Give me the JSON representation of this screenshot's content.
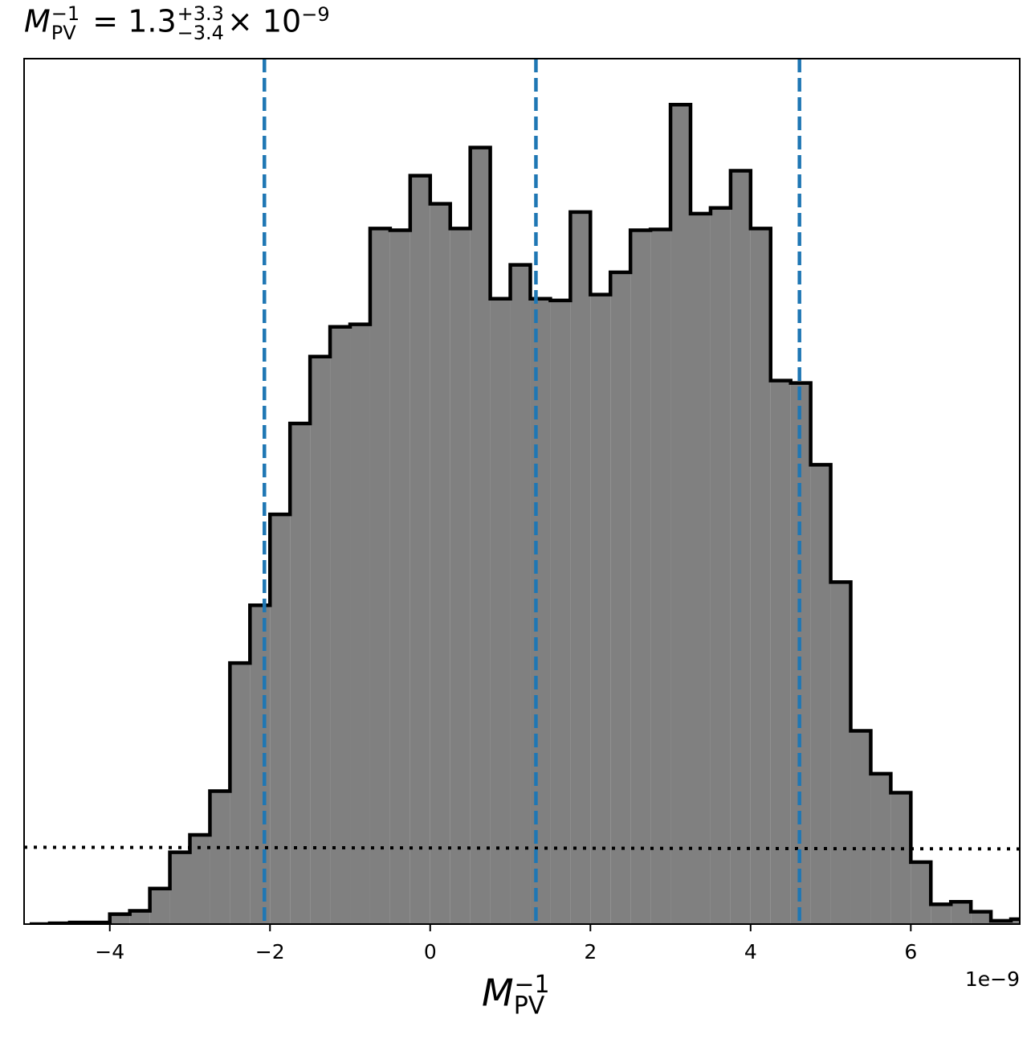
{
  "title": {
    "symbol": "M",
    "symbol_sub": "PV",
    "symbol_sup": "−1",
    "equals": "=",
    "median": "1.3",
    "plus": "+3.3",
    "minus": "−3.4",
    "times": "×",
    "scale_base": "10",
    "scale_exp": "−9"
  },
  "chart_data": {
    "type": "histogram",
    "xlabel": {
      "symbol": "M",
      "sub": "PV",
      "sup": "−1"
    },
    "x_offset_label": "1e−9",
    "x_scale": 1e-09,
    "xlim": [
      -5.07,
      7.36
    ],
    "ylim": [
      0,
      1.0
    ],
    "x_ticks": [
      -4,
      -2,
      0,
      2,
      4,
      6
    ],
    "x_tick_labels": [
      "−4",
      "−2",
      "0",
      "2",
      "4",
      "6"
    ],
    "bin_edges": [
      -5.0,
      -4.75,
      -4.5,
      -4.25,
      -4.0,
      -3.75,
      -3.5,
      -3.25,
      -3.0,
      -2.75,
      -2.5,
      -2.25,
      -2.0,
      -1.75,
      -1.5,
      -1.25,
      -1.0,
      -0.75,
      -0.5,
      -0.25,
      0.0,
      0.25,
      0.5,
      0.75,
      1.0,
      1.25,
      1.5,
      1.75,
      2.0,
      2.25,
      2.5,
      2.75,
      3.0,
      3.25,
      3.5,
      3.75,
      4.0,
      4.25,
      4.5,
      4.75,
      5.0,
      5.25,
      5.5,
      5.75,
      6.0,
      6.25,
      6.5,
      6.75,
      7.0,
      7.25
    ],
    "counts": [
      0.0,
      0.001,
      0.002,
      0.002,
      0.012,
      0.016,
      0.043,
      0.087,
      0.108,
      0.161,
      0.316,
      0.386,
      0.496,
      0.606,
      0.687,
      0.723,
      0.726,
      0.842,
      0.84,
      0.906,
      0.872,
      0.842,
      0.94,
      0.757,
      0.798,
      0.757,
      0.755,
      0.862,
      0.762,
      0.789,
      0.84,
      0.841,
      0.992,
      0.86,
      0.867,
      0.912,
      0.842,
      0.658,
      0.655,
      0.556,
      0.414,
      0.234,
      0.182,
      0.159,
      0.075,
      0.024,
      0.027,
      0.015,
      0.004,
      0.006
    ],
    "fill_color": "#808080",
    "edge_color": "#000000",
    "quantile_lines": [
      -2.07,
      1.32,
      4.61
    ],
    "quantile_color": "#1f77b4",
    "prior_level_left": 0.093,
    "prior_level_right": 0.091,
    "prior_color": "#000000",
    "grid": false
  }
}
